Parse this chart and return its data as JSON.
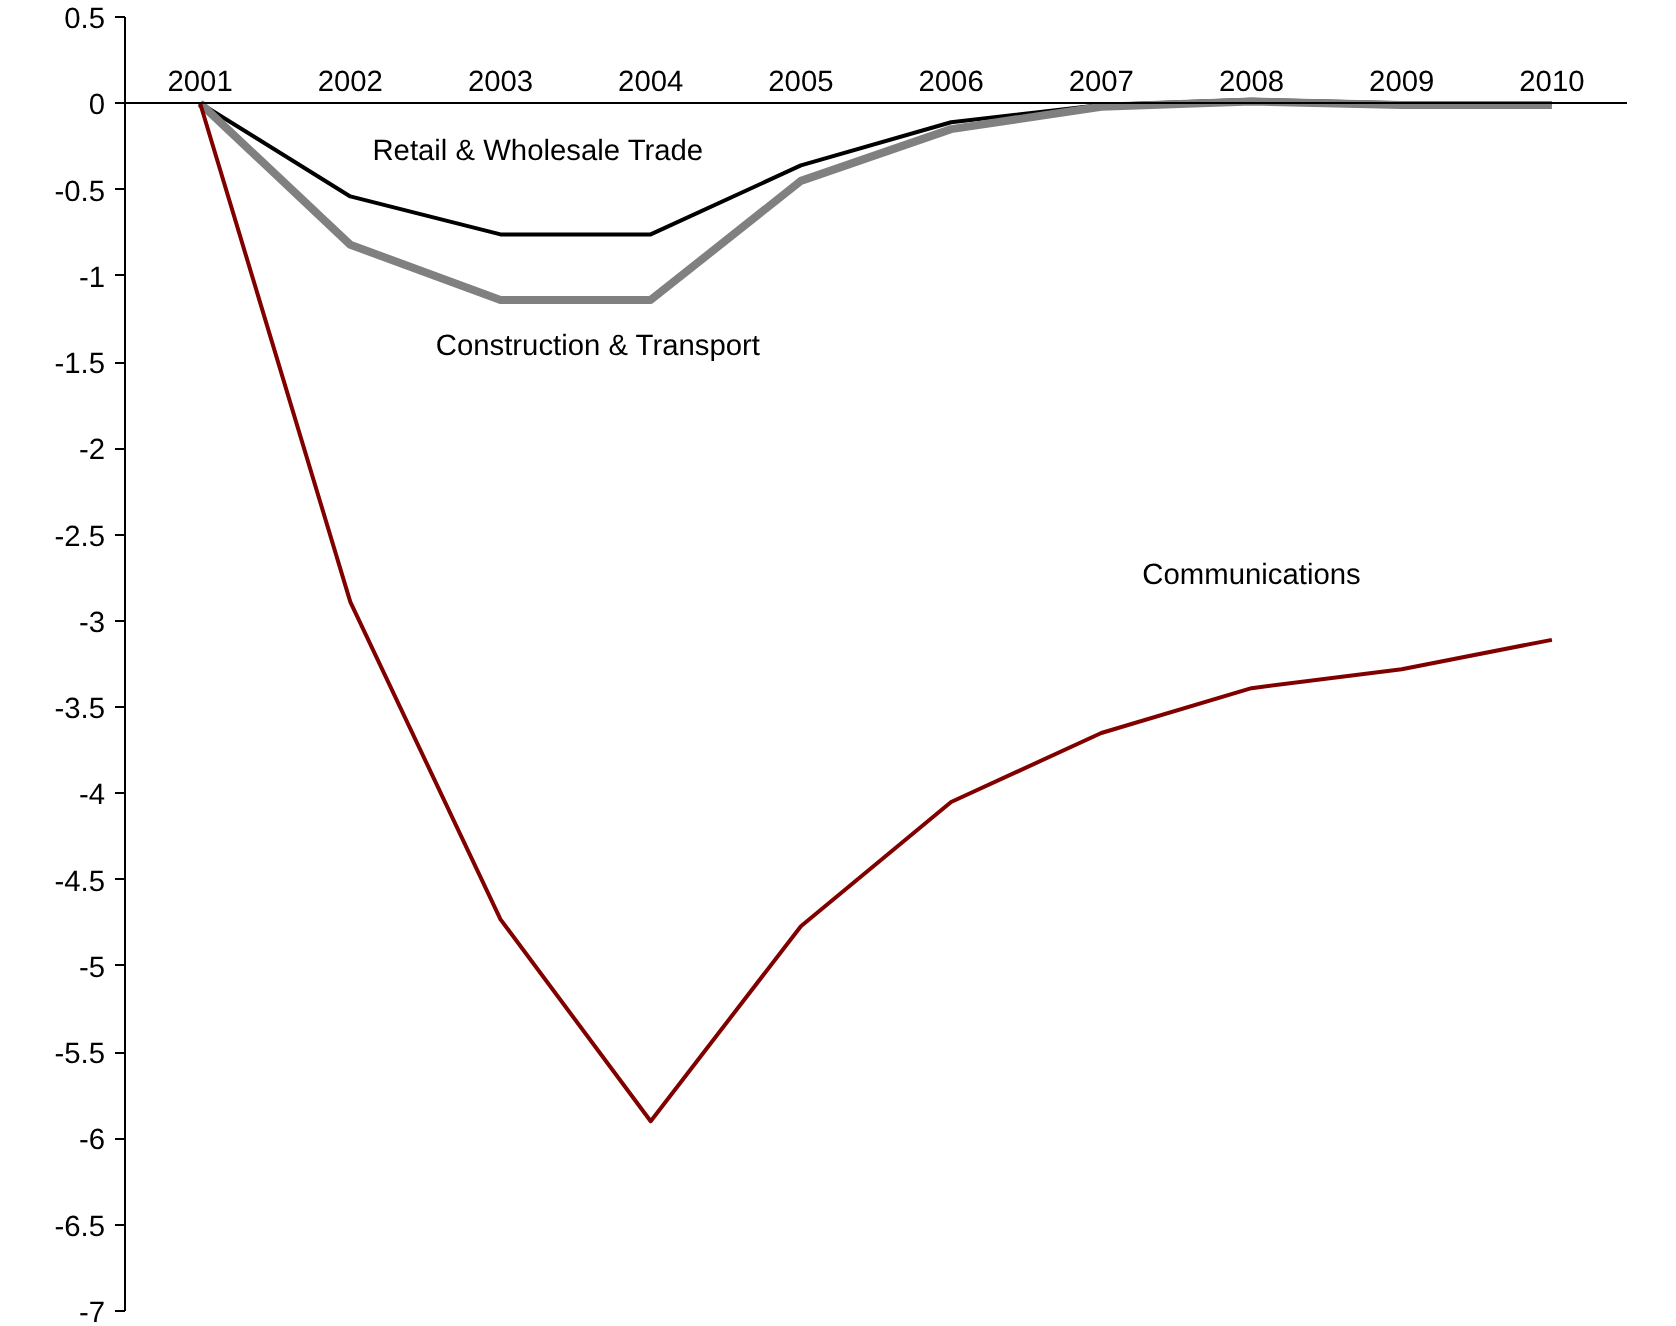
{
  "chart_data": {
    "type": "line",
    "categories": [
      "2001",
      "2002",
      "2003",
      "2004",
      "2005",
      "2006",
      "2007",
      "2008",
      "2009",
      "2010"
    ],
    "ylim": [
      -7,
      0.5
    ],
    "yticks": [
      0.5,
      0,
      -0.5,
      -1,
      -1.5,
      -2,
      -2.5,
      -3,
      -3.5,
      -4,
      -4.5,
      -5,
      -5.5,
      -6,
      -6.5,
      -7
    ],
    "grid": false,
    "marker": "none",
    "line_style": "solid",
    "series": [
      {
        "name": "Retail & Wholesale Trade",
        "color": "#000000",
        "values": [
          0,
          -0.54,
          -0.76,
          -0.76,
          -0.36,
          -0.11,
          -0.01,
          0.02,
          0.0,
          0.0
        ]
      },
      {
        "name": "Construction & Transport",
        "color": "#808080",
        "values": [
          0,
          -0.82,
          -1.14,
          -1.14,
          -0.45,
          -0.15,
          -0.02,
          0.01,
          -0.01,
          -0.01
        ]
      },
      {
        "name": "Communications",
        "color": "#800000",
        "values": [
          0,
          -2.89,
          -4.73,
          -5.9,
          -4.77,
          -4.05,
          -3.65,
          -3.39,
          -3.28,
          -3.11
        ]
      }
    ]
  }
}
